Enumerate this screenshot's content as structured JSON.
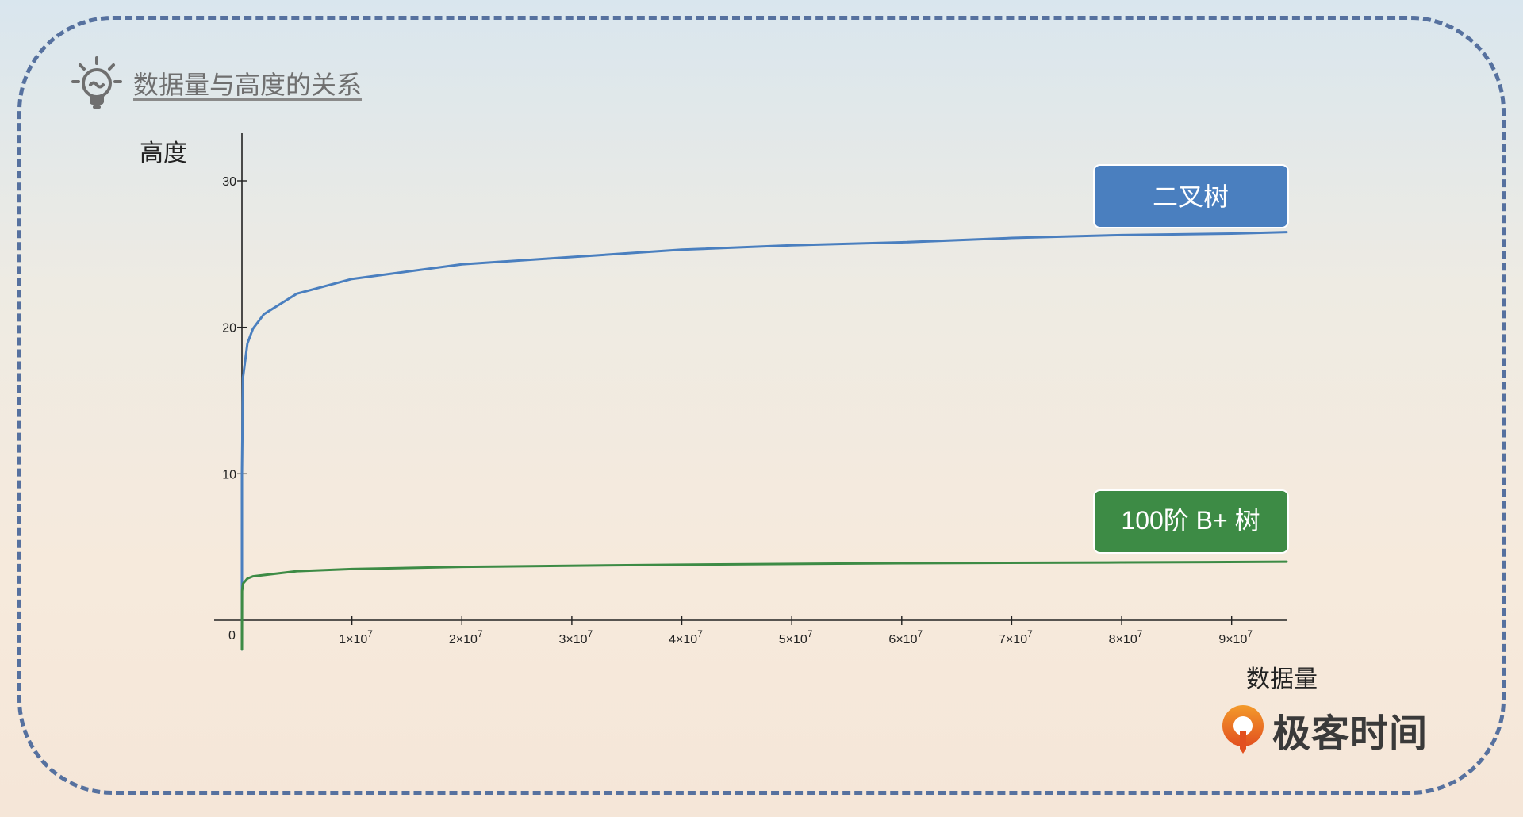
{
  "page": {
    "title": "数据量与高度的关系",
    "brand": "极客时间"
  },
  "colors": {
    "binary_tree": "#4a7fbf",
    "bplus_tree": "#3d8b45",
    "border": "#56719f"
  },
  "chart_data": {
    "type": "line",
    "ylabel": "高度",
    "xlabel": "数据量",
    "origin_label": "0",
    "xlim": [
      0,
      95000000
    ],
    "ylim": [
      0,
      30
    ],
    "y_ticks": [
      {
        "value": 10,
        "label": "10"
      },
      {
        "value": 20,
        "label": "20"
      },
      {
        "value": 30,
        "label": "30"
      }
    ],
    "x_ticks": [
      {
        "value": 10000000,
        "mant": "1×10",
        "exp": "7"
      },
      {
        "value": 20000000,
        "mant": "2×10",
        "exp": "7"
      },
      {
        "value": 30000000,
        "mant": "3×10",
        "exp": "7"
      },
      {
        "value": 40000000,
        "mant": "4×10",
        "exp": "7"
      },
      {
        "value": 50000000,
        "mant": "5×10",
        "exp": "7"
      },
      {
        "value": 60000000,
        "mant": "6×10",
        "exp": "7"
      },
      {
        "value": 70000000,
        "mant": "7×10",
        "exp": "7"
      },
      {
        "value": 80000000,
        "mant": "8×10",
        "exp": "7"
      },
      {
        "value": 90000000,
        "mant": "9×10",
        "exp": "7"
      }
    ],
    "series": [
      {
        "name": "二叉树",
        "color": "#4a7fbf",
        "x": [
          0,
          10,
          1000,
          100000,
          500000,
          1000000,
          2000000,
          5000000,
          10000000,
          20000000,
          30000000,
          40000000,
          50000000,
          60000000,
          70000000,
          80000000,
          90000000,
          95000000
        ],
        "y": [
          -2,
          3.3,
          10,
          16.6,
          18.9,
          19.9,
          20.9,
          22.3,
          23.3,
          24.3,
          24.8,
          25.3,
          25.6,
          25.8,
          26.1,
          26.3,
          26.4,
          26.5
        ]
      },
      {
        "name": "100阶 B+ 树",
        "color": "#3d8b45",
        "x": [
          0,
          10000,
          100000,
          500000,
          1000000,
          5000000,
          10000000,
          20000000,
          40000000,
          60000000,
          80000000,
          95000000
        ],
        "y": [
          -2,
          2.0,
          2.5,
          2.85,
          3.0,
          3.35,
          3.5,
          3.65,
          3.8,
          3.9,
          3.95,
          4.0
        ]
      }
    ]
  }
}
